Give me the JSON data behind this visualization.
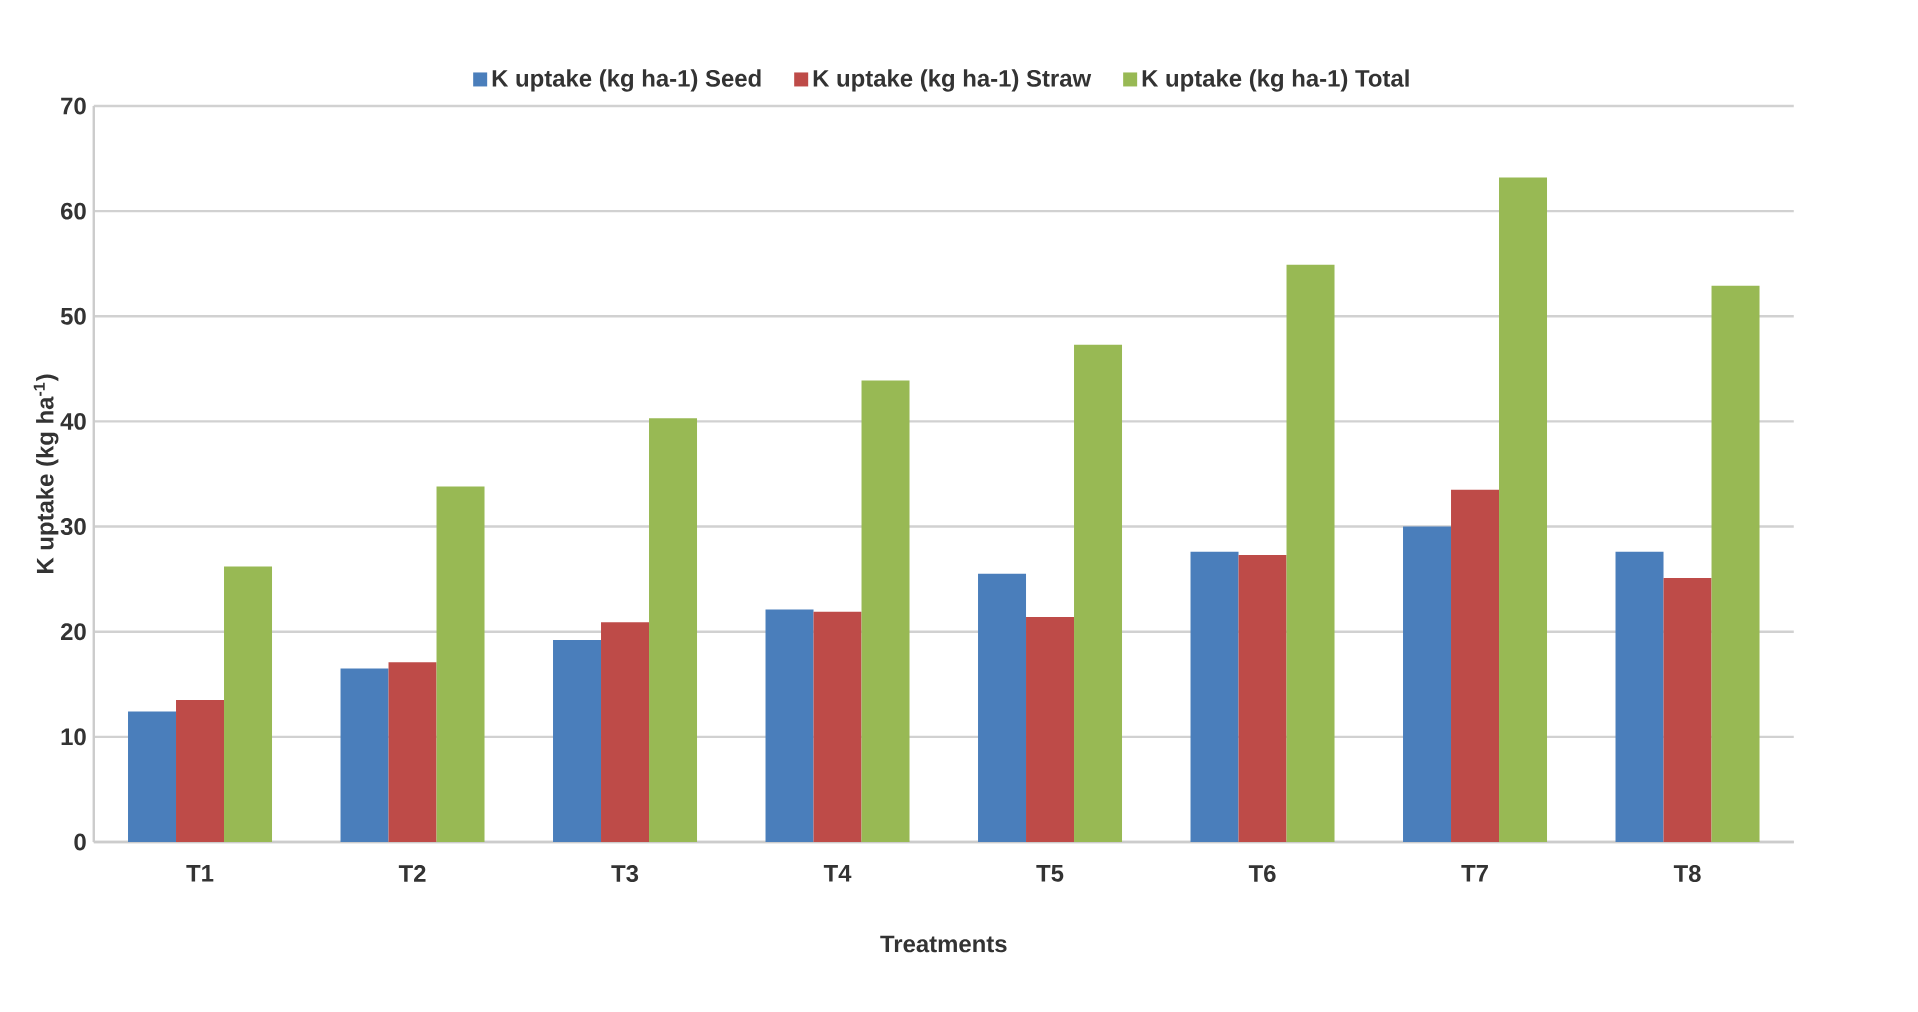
{
  "chart_data": {
    "type": "bar",
    "xlabel": "Treatments",
    "ylabel": "K uptake (kg ha$^{-1}$)",
    "categories": [
      "T1",
      "T2",
      "T3",
      "T4",
      "T5",
      "T6",
      "T7",
      "T8"
    ],
    "series": [
      {
        "name": "K uptake (kg ha-1) Seed",
        "color": "#4a7ebb",
        "values": [
          12.4,
          16.5,
          19.2,
          22.1,
          25.5,
          27.6,
          30.0,
          27.6
        ]
      },
      {
        "name": "K uptake (kg ha-1) Straw",
        "color": "#be4b48",
        "values": [
          13.5,
          17.1,
          20.9,
          21.9,
          21.4,
          27.3,
          33.5,
          25.1
        ]
      },
      {
        "name": "K uptake (kg ha-1) Total",
        "color": "#98b954",
        "values": [
          26.2,
          33.8,
          40.3,
          43.9,
          47.3,
          54.9,
          63.2,
          52.9
        ]
      }
    ],
    "ylim": [
      0,
      70
    ],
    "yticks": [
      0,
      10,
      20,
      30,
      40,
      50,
      60,
      70
    ],
    "grid": "y",
    "legend": "top"
  }
}
